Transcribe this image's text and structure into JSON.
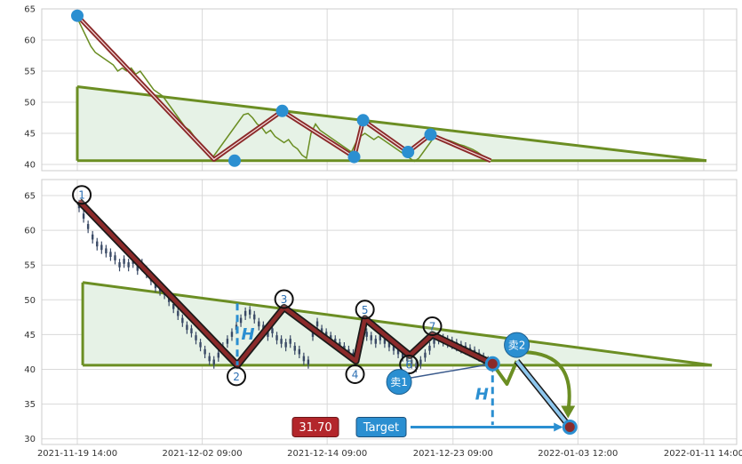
{
  "chart_data": [
    {
      "type": "line",
      "panel": "top",
      "ylim": [
        39,
        65
      ],
      "y_ticks": [
        40,
        45,
        50,
        55,
        60,
        65
      ],
      "x": [
        0,
        5,
        10,
        15,
        20,
        25,
        30,
        35,
        40,
        45,
        50,
        55,
        60,
        65,
        70,
        75,
        80,
        85,
        90,
        95,
        100,
        105,
        110,
        115,
        120,
        125,
        130,
        135,
        140,
        145,
        150,
        155,
        160,
        165,
        170,
        175,
        180,
        185,
        190,
        195,
        200,
        205,
        210,
        215,
        220,
        225,
        230,
        235,
        240,
        245,
        250,
        255,
        260,
        265,
        270,
        275,
        280,
        285,
        290,
        295,
        300,
        305,
        310,
        315,
        320,
        325,
        330,
        335,
        340,
        345,
        350,
        355,
        360,
        365,
        370,
        375,
        380,
        385,
        390,
        395,
        400,
        405,
        410,
        415,
        420,
        425,
        430,
        435,
        440,
        445,
        450,
        455,
        460
      ],
      "price": [
        63.5,
        62.0,
        60.5,
        59.0,
        58.0,
        57.5,
        57.0,
        56.5,
        56.0,
        55.0,
        55.5,
        55.0,
        55.5,
        54.5,
        55.0,
        54.0,
        53.0,
        52.0,
        51.5,
        51.0,
        50.0,
        49.0,
        48.0,
        47.0,
        46.0,
        45.5,
        44.5,
        43.5,
        42.5,
        41.5,
        41.0,
        42.0,
        43.0,
        44.0,
        45.0,
        46.0,
        47.0,
        48.0,
        48.2,
        47.5,
        46.5,
        46.0,
        45.0,
        45.5,
        44.5,
        44.0,
        43.5,
        44.0,
        43.0,
        42.5,
        41.5,
        41.0,
        45.0,
        46.5,
        45.5,
        45.0,
        44.5,
        44.0,
        43.5,
        43.0,
        42.5,
        42.0,
        43.5,
        44.5,
        45.0,
        44.5,
        44.0,
        44.5,
        44.0,
        43.5,
        43.0,
        42.5,
        42.0,
        41.5,
        41.0,
        40.5,
        41.0,
        42.0,
        43.0,
        44.0,
        44.5,
        44.2,
        44.0,
        43.8,
        43.5,
        43.2,
        43.0,
        42.7,
        42.4,
        42.0,
        41.5,
        41.0,
        40.5
      ],
      "zigzag": [
        {
          "x": 0,
          "y": 63.9
        },
        {
          "x": 152,
          "y": 40.8
        },
        {
          "x": 228,
          "y": 48.6
        },
        {
          "x": 308,
          "y": 41.2
        },
        {
          "x": 318,
          "y": 47.1
        },
        {
          "x": 368,
          "y": 42.0
        },
        {
          "x": 393,
          "y": 44.8
        },
        {
          "x": 460,
          "y": 40.6
        }
      ],
      "pivots": [
        {
          "x": 0,
          "y": 63.9
        },
        {
          "x": 175,
          "y": 40.6
        },
        {
          "x": 228,
          "y": 48.6
        },
        {
          "x": 308,
          "y": 41.2
        },
        {
          "x": 318,
          "y": 47.1
        },
        {
          "x": 368,
          "y": 42.0
        },
        {
          "x": 393,
          "y": 44.8
        }
      ],
      "triangle": [
        {
          "x": 0,
          "y": 52.5
        },
        {
          "x": 0,
          "y": 40.6
        },
        {
          "x": 700,
          "y": 40.6
        },
        {
          "x": 700,
          "y": 40.6
        }
      ],
      "triangle_upper": [
        {
          "x": 0,
          "y": 52.5
        },
        {
          "x": 700,
          "y": 40.6
        }
      ]
    },
    {
      "type": "line",
      "panel": "bottom",
      "ylim": [
        29.2,
        67.3
      ],
      "y_ticks": [
        30,
        35,
        40,
        45,
        50,
        55,
        60,
        65
      ],
      "x_ticks": [
        "2021-11-19 14:00",
        "2021-12-02 09:00",
        "2021-12-14 09:00",
        "2021-12-23 09:00",
        "2022-01-03 12:00",
        "2022-01-11 14:00"
      ],
      "x_tick_positions": [
        0,
        139,
        278,
        418,
        557,
        697
      ],
      "zigzag": [
        {
          "x": 2,
          "y": 64.2
        },
        {
          "x": 178,
          "y": 40.6
        },
        {
          "x": 230,
          "y": 48.9
        },
        {
          "x": 310,
          "y": 41.2
        },
        {
          "x": 320,
          "y": 47.3
        },
        {
          "x": 370,
          "y": 42.0
        },
        {
          "x": 395,
          "y": 45.0
        },
        {
          "x": 462,
          "y": 40.8
        }
      ],
      "labels": [
        {
          "text": "1",
          "x": 5,
          "y": 65.1
        },
        {
          "text": "2",
          "x": 177,
          "y": 39.0
        },
        {
          "text": "3",
          "x": 230,
          "y": 50.1
        },
        {
          "text": "4",
          "x": 309,
          "y": 39.3
        },
        {
          "text": "5",
          "x": 320,
          "y": 48.6
        },
        {
          "text": "6",
          "x": 369,
          "y": 40.7
        },
        {
          "text": "7",
          "x": 395,
          "y": 46.2
        }
      ],
      "triangle_upper": [
        {
          "x": 6,
          "y": 52.5
        },
        {
          "x": 706,
          "y": 40.6
        }
      ],
      "triangle_lower_y": 40.6,
      "triangle_start_x": 6,
      "triangle_end_x": 706,
      "h_marker": {
        "x": 178,
        "y_low": 40.6,
        "y_high": 49.5,
        "label": "H"
      },
      "h_marker2": {
        "x": 462,
        "y_low": 32.0,
        "y_high": 40.8,
        "label": "H"
      },
      "sell1": {
        "label": "卖1",
        "x": 358,
        "y": 38.2
      },
      "sell2": {
        "label": "卖2",
        "x": 489,
        "y": 43.5
      },
      "target_point": {
        "x": 548,
        "y": 31.7
      },
      "target_value": "31.70",
      "target_label": "Target",
      "projection": [
        {
          "x": 462,
          "y": 40.8
        },
        {
          "x": 478,
          "y": 37.9
        },
        {
          "x": 489,
          "y": 41.2
        },
        {
          "x": 548,
          "y": 31.7
        }
      ],
      "sell_line_end": {
        "x": 462,
        "y": 40.8
      }
    }
  ],
  "colors": {
    "zigzag_outer": "#1a1a1a",
    "zigzag_inner": "#8b2a2a",
    "triangle": "#6b8e23",
    "triangle_fill": "#e6f2e6",
    "pivot": "#2b8fd1",
    "price_line": "#6b8e23",
    "h_marker": "#2b8fd1",
    "target_box": "#2b8fd1",
    "value_box": "#b3262b"
  }
}
